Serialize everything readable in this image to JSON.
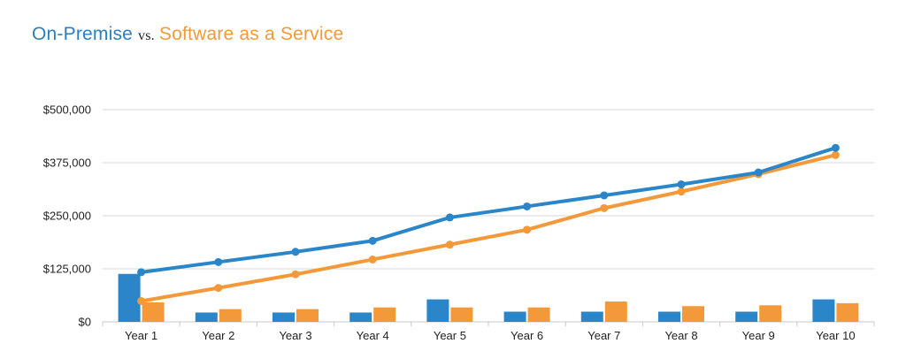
{
  "title": {
    "part1": "On-Premise",
    "connector": "vs.",
    "part2": "Software as a Service"
  },
  "colors": {
    "on_premise": "#2a86c8",
    "saas": "#f3993a",
    "grid": "#d9d9d9",
    "text": "#222222"
  },
  "chart_data": {
    "type": "bar",
    "categories": [
      "Year 1",
      "Year 2",
      "Year 3",
      "Year 4",
      "Year 5",
      "Year 6",
      "Year 7",
      "Year 8",
      "Year 9",
      "Year 10"
    ],
    "ylim": [
      0,
      500000
    ],
    "y_ticks": [
      0,
      125000,
      250000,
      375000,
      500000
    ],
    "y_tick_labels": [
      "$0",
      "$125,000",
      "$250,000",
      "$375,000",
      "$500,000"
    ],
    "grid": true,
    "legend": "title",
    "series": [
      {
        "name": "On-Premise",
        "type": "bar",
        "color_key": "on_premise",
        "values": [
          113000,
          22000,
          22000,
          22000,
          53000,
          24000,
          24000,
          24000,
          24000,
          53000
        ]
      },
      {
        "name": "Software as a Service",
        "type": "bar",
        "color_key": "saas",
        "values": [
          46000,
          30000,
          30000,
          34000,
          34000,
          34000,
          48000,
          37000,
          39000,
          44000
        ]
      },
      {
        "name": "On-Premise",
        "type": "line",
        "color_key": "on_premise",
        "values": [
          117000,
          141000,
          165000,
          191000,
          246000,
          272000,
          298000,
          324000,
          352000,
          410000
        ]
      },
      {
        "name": "Software as a Service",
        "type": "line",
        "color_key": "saas",
        "values": [
          49000,
          80000,
          112000,
          147000,
          182000,
          217000,
          268000,
          307000,
          348000,
          393000
        ]
      }
    ]
  }
}
